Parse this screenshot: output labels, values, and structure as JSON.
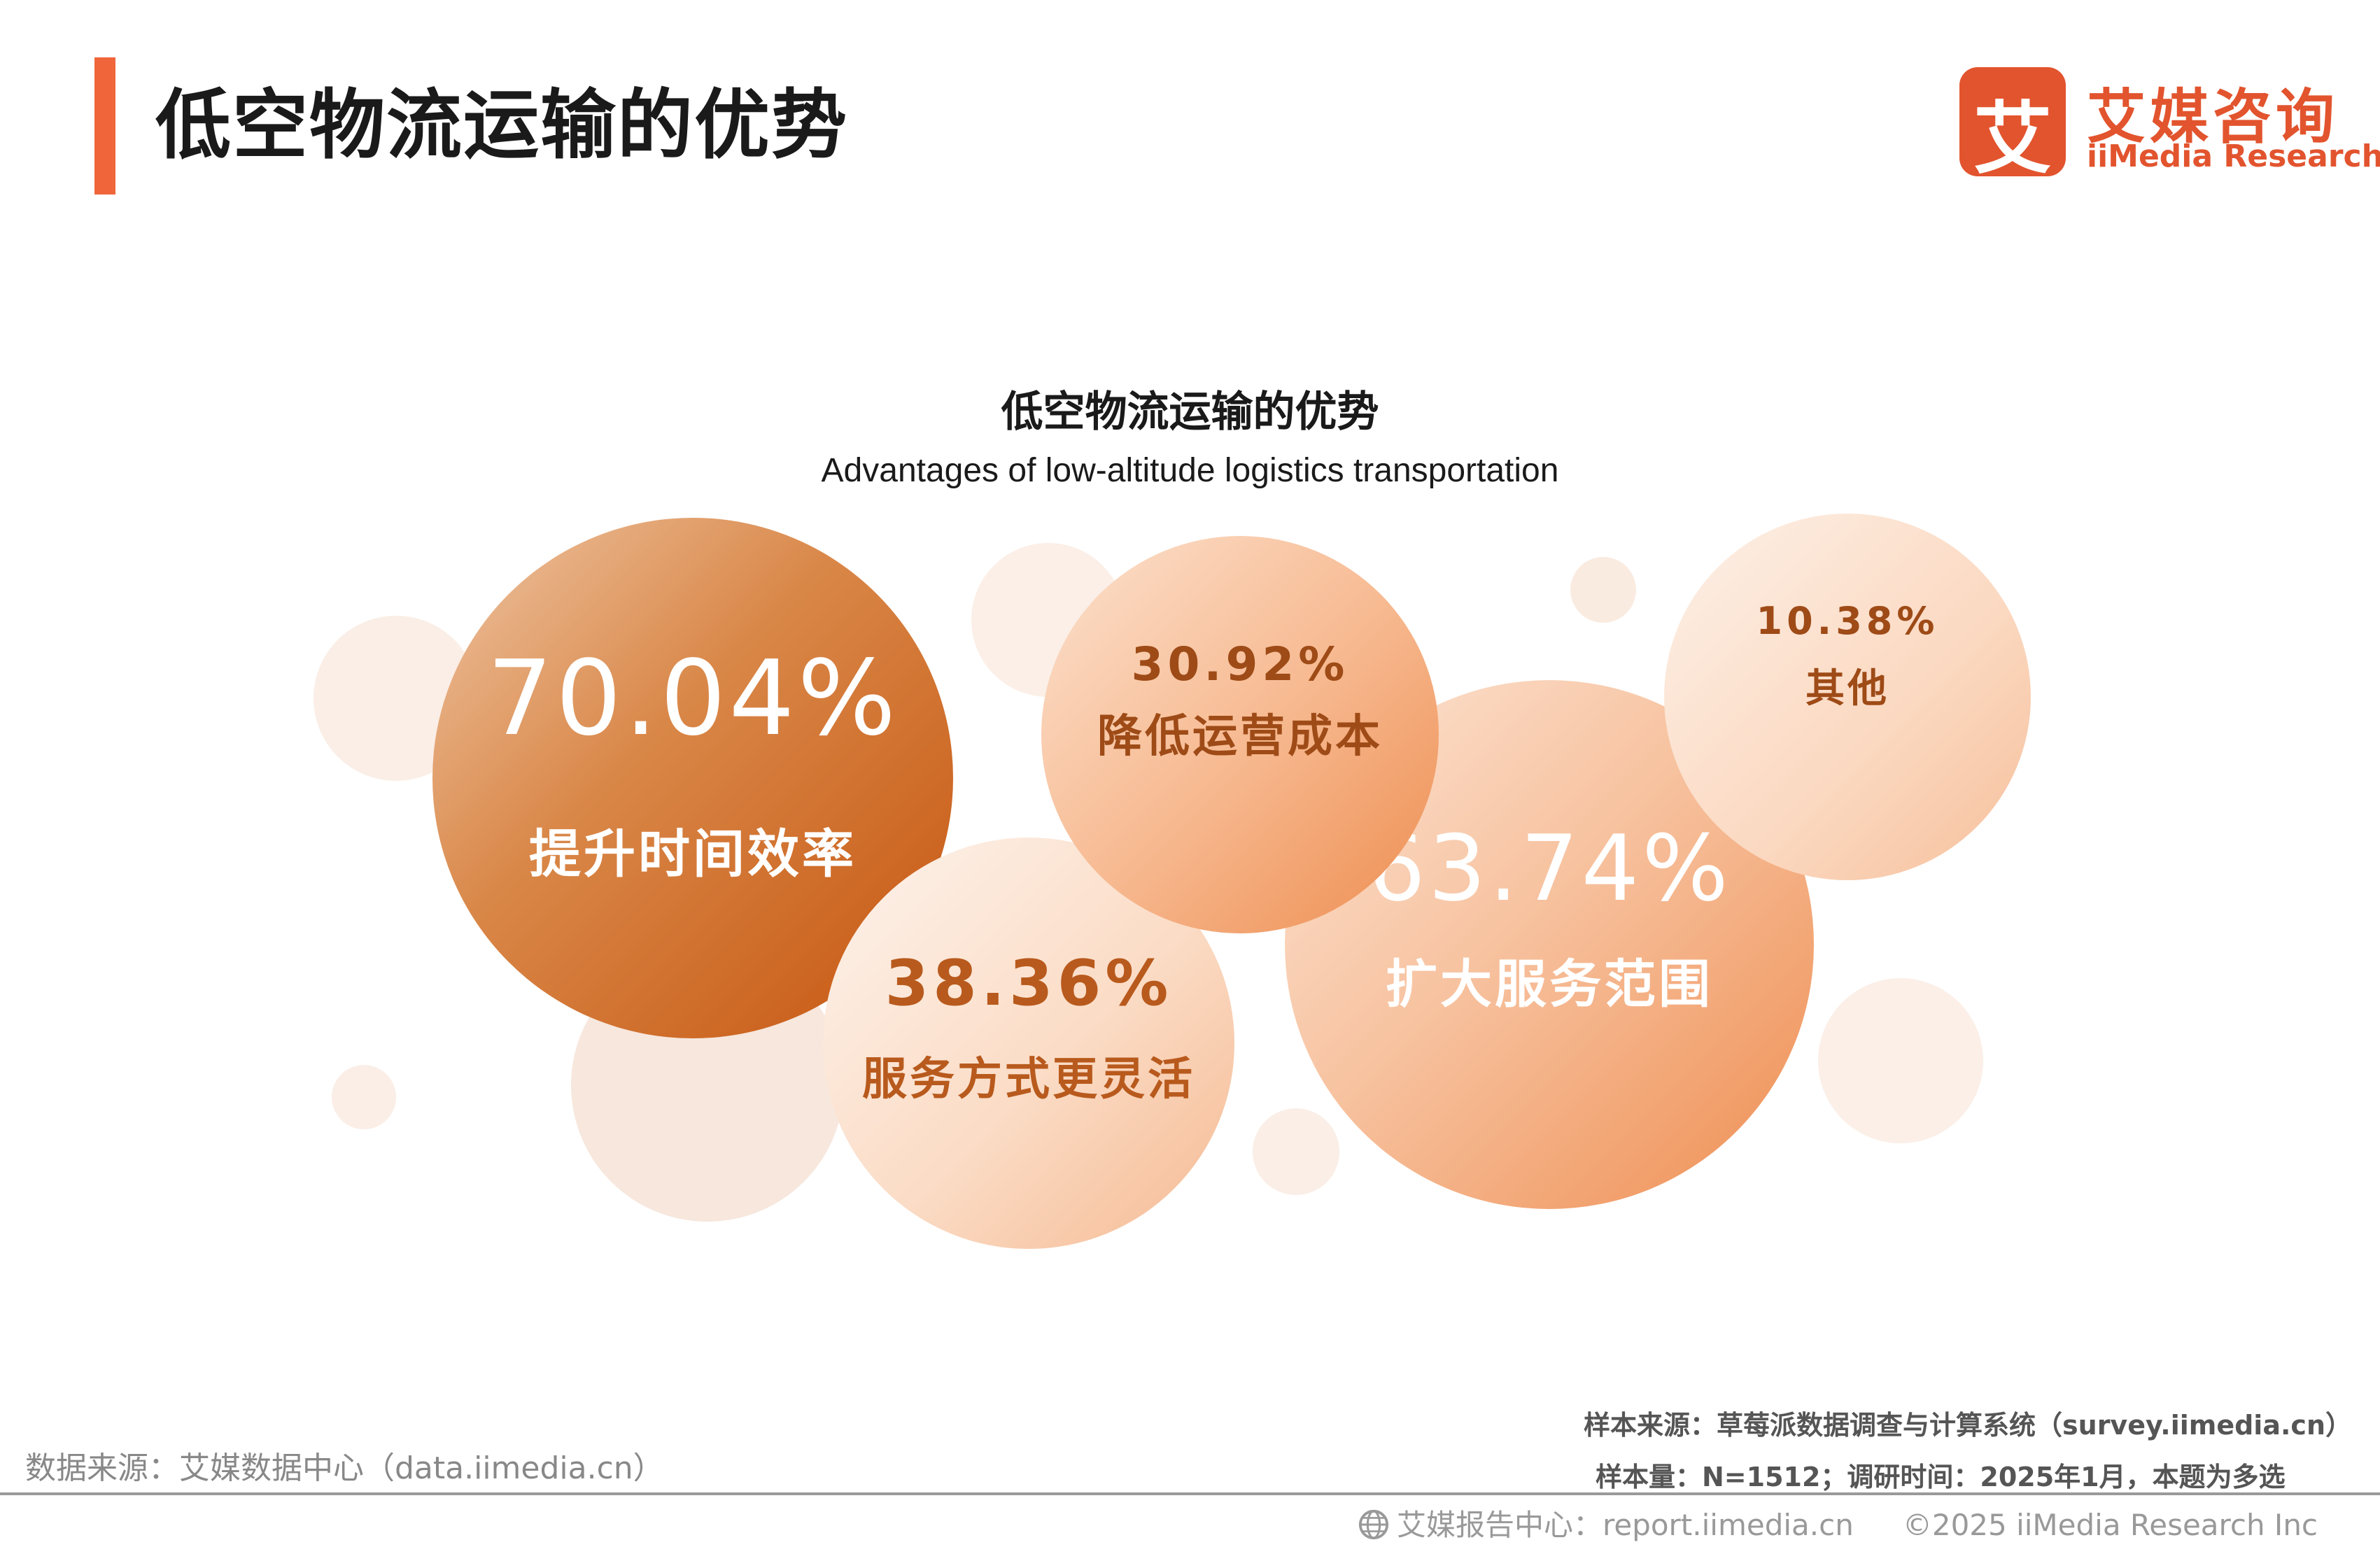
{
  "page": {
    "title": "低空物流运输的优势"
  },
  "logo": {
    "mark": "艾",
    "cn": "艾媒咨询",
    "en": "iiMedia Research"
  },
  "chart_data": {
    "type": "bubble",
    "title": "低空物流运输的优势",
    "subtitle": "Advantages of low-altitude logistics transportation",
    "unit": "%",
    "categories": [
      "提升时间效率",
      "扩大服务范围",
      "服务方式更灵活",
      "降低运营成本",
      "其他"
    ],
    "values": [
      70.04,
      63.74,
      38.36,
      30.92,
      10.38
    ],
    "labels": [
      "70.04%",
      "63.74%",
      "38.36%",
      "30.92%",
      "10.38%"
    ]
  },
  "source": {
    "left": "数据来源：艾媒数据中心（data.iimedia.cn）",
    "sample_source": "样本来源：草莓派数据调查与计算系统（survey.iimedia.cn）",
    "sample_size": "样本量：N=1512；调研时间：2025年1月，本题为多选"
  },
  "footer": {
    "center": "艾媒报告中心：report.iimedia.cn",
    "copyright": "©2025  iiMedia Research Inc"
  },
  "colors": {
    "accent": "#f0663a",
    "brand": "#e2542e"
  }
}
